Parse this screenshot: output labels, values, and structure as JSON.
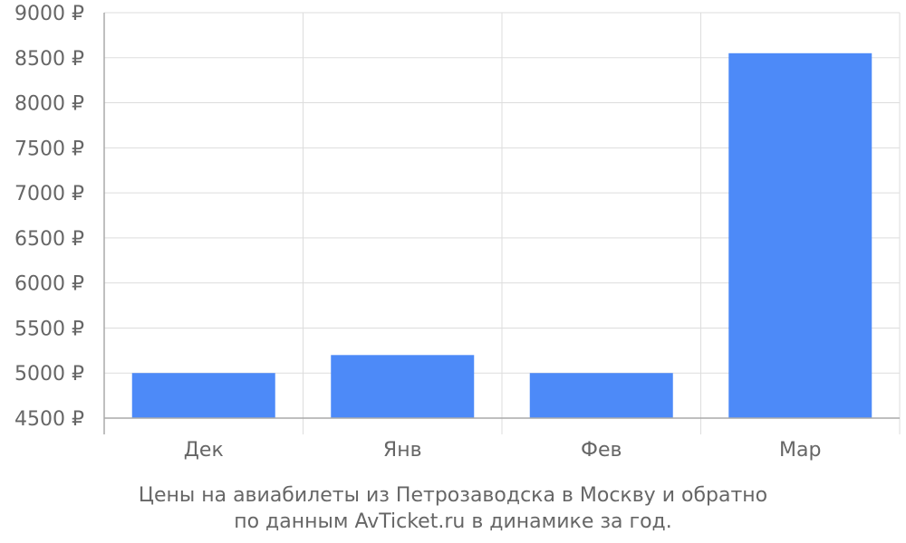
{
  "chart_data": {
    "type": "bar",
    "categories": [
      "Дек",
      "Янв",
      "Фев",
      "Мар"
    ],
    "values": [
      5000,
      5200,
      5000,
      8550
    ],
    "ylim": [
      4500,
      9000
    ],
    "yticks": [
      4500,
      5000,
      5500,
      6000,
      6500,
      7000,
      7500,
      8000,
      8500,
      9000
    ],
    "ytick_labels": [
      "4500 ₽",
      "5000 ₽",
      "5500 ₽",
      "6000 ₽",
      "6500 ₽",
      "7000 ₽",
      "7500 ₽",
      "8000 ₽",
      "8500 ₽",
      "9000 ₽"
    ],
    "xlabel": "",
    "ylabel": "",
    "grid": true,
    "legend": "none",
    "bar_color": "#4d8af8",
    "grid_color": "#dddddd",
    "axis_color": "#aaaaaa",
    "text_color": "#666666"
  },
  "caption": {
    "line1": "Цены на авиабилеты из Петрозаводска в Москву и обратно",
    "line2": "по данным AvTicket.ru в динамике за год."
  }
}
